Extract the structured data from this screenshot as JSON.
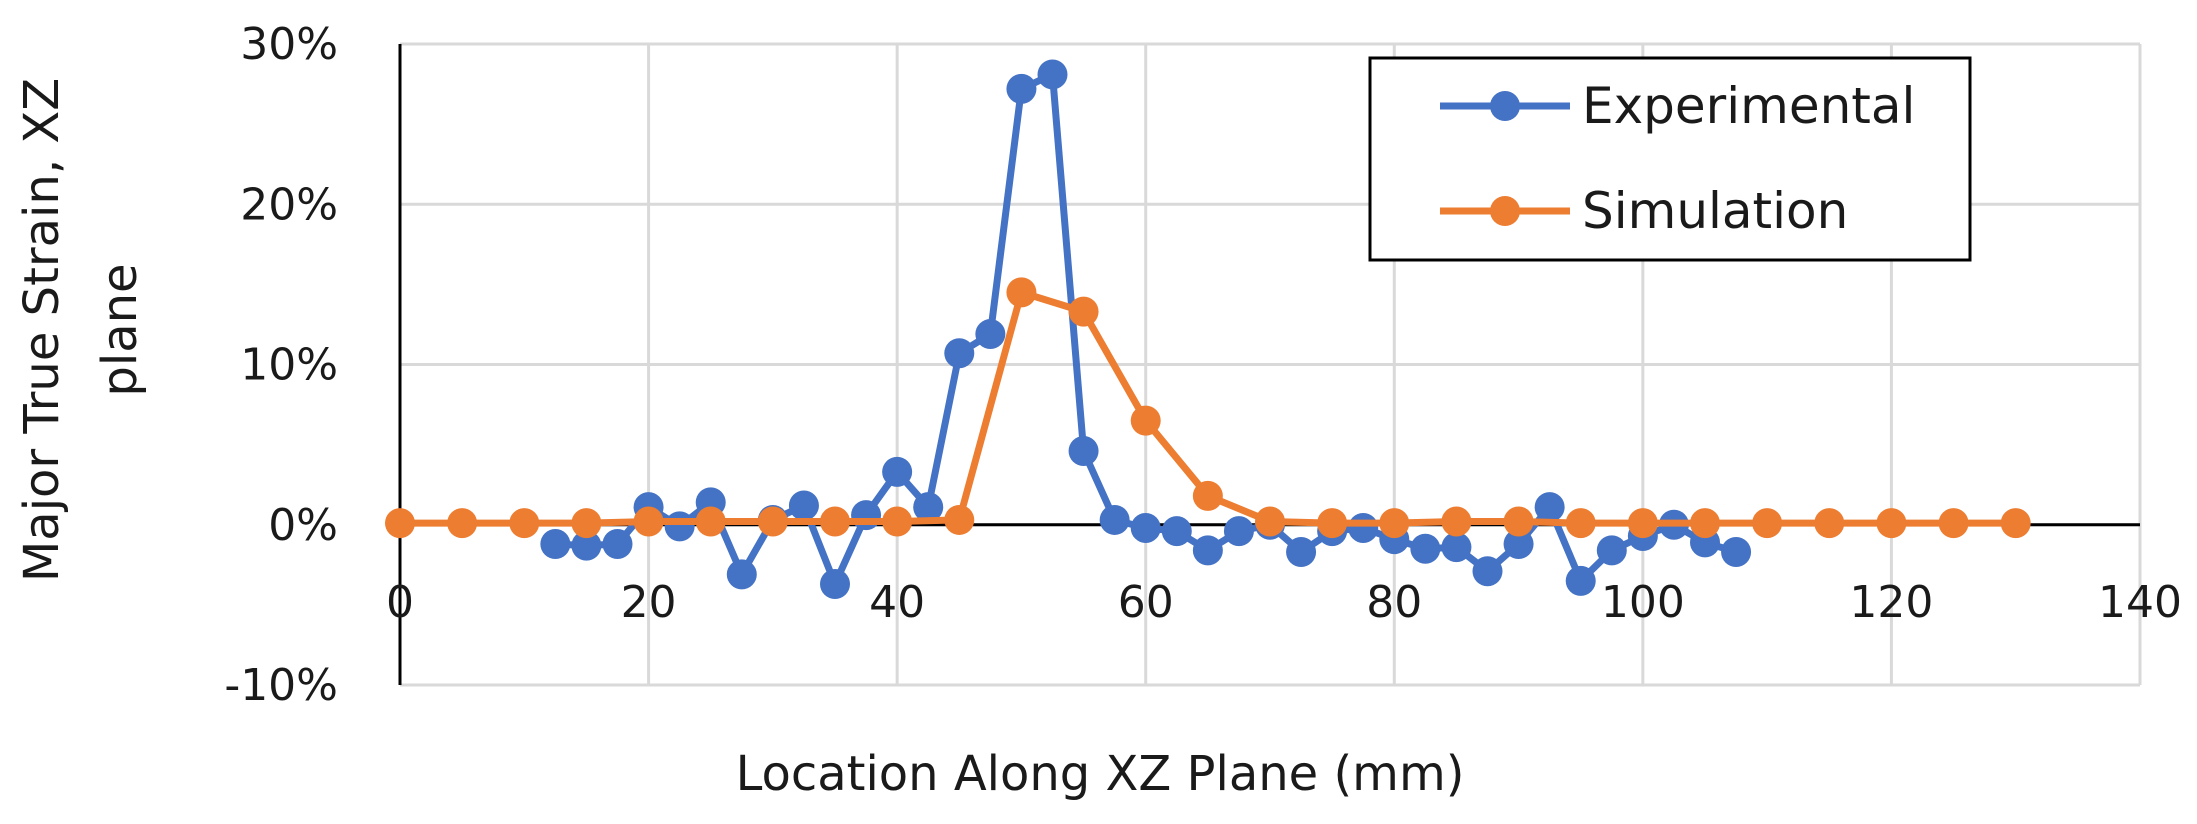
{
  "chart_data": {
    "type": "line",
    "title": "",
    "xlabel": "Location Along XZ Plane (mm)",
    "ylabel_lines": [
      "Major True Strain, XZ",
      "plane"
    ],
    "xlim": [
      0,
      140
    ],
    "ylim": [
      -0.1,
      0.3
    ],
    "x_ticks": [
      0,
      20,
      40,
      60,
      80,
      100,
      120,
      140
    ],
    "x_tick_labels": [
      "0",
      "20",
      "40",
      "60",
      "80",
      "100",
      "120",
      "140"
    ],
    "y_ticks": [
      -0.1,
      0.0,
      0.1,
      0.2,
      0.3
    ],
    "y_tick_labels": [
      "-10%",
      "0%",
      "10%",
      "20%",
      "30%"
    ],
    "grid": true,
    "legend_position": "top-right",
    "series": [
      {
        "name": "Experimental",
        "color": "#4472C4",
        "points": [
          [
            12.5,
            -0.012
          ],
          [
            15.0,
            -0.013
          ],
          [
            17.5,
            -0.012
          ],
          [
            20.0,
            0.011
          ],
          [
            22.5,
            -0.001
          ],
          [
            25.0,
            0.014
          ],
          [
            27.5,
            -0.031
          ],
          [
            30.0,
            0.003
          ],
          [
            32.5,
            0.012
          ],
          [
            35.0,
            -0.037
          ],
          [
            37.5,
            0.006
          ],
          [
            40.0,
            0.033
          ],
          [
            42.5,
            0.011
          ],
          [
            45.0,
            0.107
          ],
          [
            47.5,
            0.119
          ],
          [
            50.0,
            0.272
          ],
          [
            52.5,
            0.281
          ],
          [
            55.0,
            0.046
          ],
          [
            57.5,
            0.003
          ],
          [
            60.0,
            -0.002
          ],
          [
            62.5,
            -0.004
          ],
          [
            65.0,
            -0.016
          ],
          [
            67.5,
            -0.004
          ],
          [
            70.0,
            0.0
          ],
          [
            72.5,
            -0.017
          ],
          [
            75.0,
            -0.004
          ],
          [
            77.5,
            -0.002
          ],
          [
            80.0,
            -0.009
          ],
          [
            82.5,
            -0.015
          ],
          [
            85.0,
            -0.014
          ],
          [
            87.5,
            -0.029
          ],
          [
            90.0,
            -0.012
          ],
          [
            92.5,
            0.011
          ],
          [
            95.0,
            -0.035
          ],
          [
            97.5,
            -0.016
          ],
          [
            100.0,
            -0.007
          ],
          [
            102.5,
            0.0
          ],
          [
            105.0,
            -0.011
          ],
          [
            107.5,
            -0.017
          ]
        ]
      },
      {
        "name": "Simulation",
        "color": "#ED7D31",
        "points": [
          [
            0,
            0.001
          ],
          [
            5,
            0.001
          ],
          [
            10,
            0.001
          ],
          [
            15,
            0.001
          ],
          [
            20,
            0.002
          ],
          [
            25,
            0.002
          ],
          [
            30,
            0.002
          ],
          [
            35,
            0.002
          ],
          [
            40,
            0.002
          ],
          [
            45,
            0.003
          ],
          [
            50,
            0.145
          ],
          [
            55,
            0.133
          ],
          [
            60,
            0.065
          ],
          [
            65,
            0.018
          ],
          [
            70,
            0.002
          ],
          [
            75,
            0.001
          ],
          [
            80,
            0.001
          ],
          [
            85,
            0.002
          ],
          [
            90,
            0.002
          ],
          [
            95,
            0.001
          ],
          [
            100,
            0.001
          ],
          [
            105,
            0.001
          ],
          [
            110,
            0.001
          ],
          [
            115,
            0.001
          ],
          [
            120,
            0.001
          ],
          [
            125,
            0.001
          ],
          [
            130,
            0.001
          ]
        ]
      }
    ]
  }
}
